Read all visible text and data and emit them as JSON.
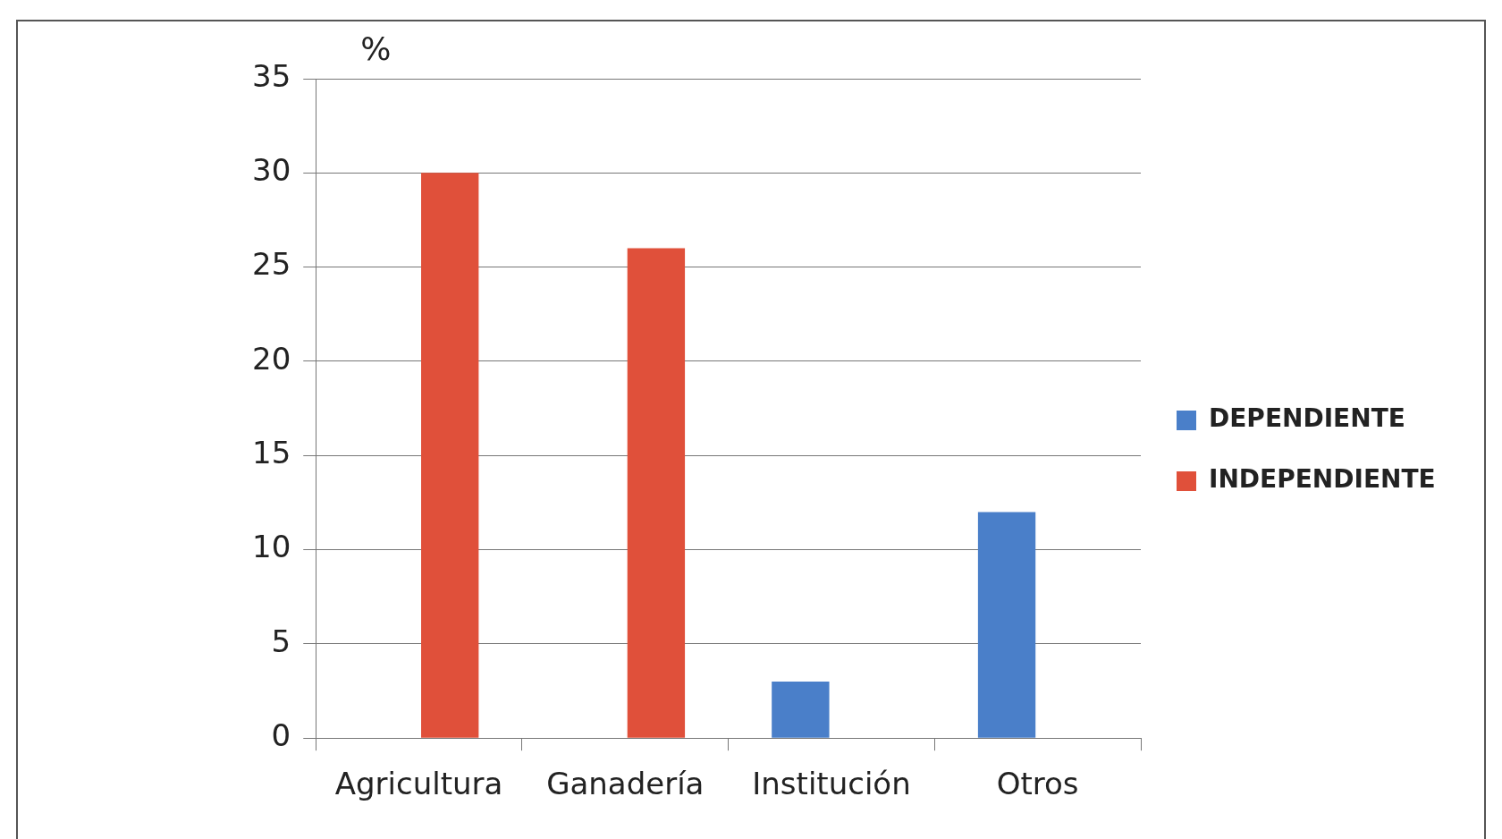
{
  "chart_data": {
    "type": "bar",
    "ylabel": "%",
    "categories": [
      "Agricultura",
      "Ganadería",
      "Institución",
      "Otros"
    ],
    "series": [
      {
        "name": "DEPENDIENTE",
        "color": "#4a7fc9",
        "values": [
          null,
          null,
          3,
          12
        ]
      },
      {
        "name": "INDEPENDIENTE",
        "color": "#e0503a",
        "values": [
          30,
          26,
          null,
          null
        ]
      }
    ],
    "ylim": [
      0,
      35
    ],
    "yticks": [
      0,
      5,
      10,
      15,
      20,
      25,
      30,
      35
    ],
    "grid": "y",
    "legend": "right"
  }
}
